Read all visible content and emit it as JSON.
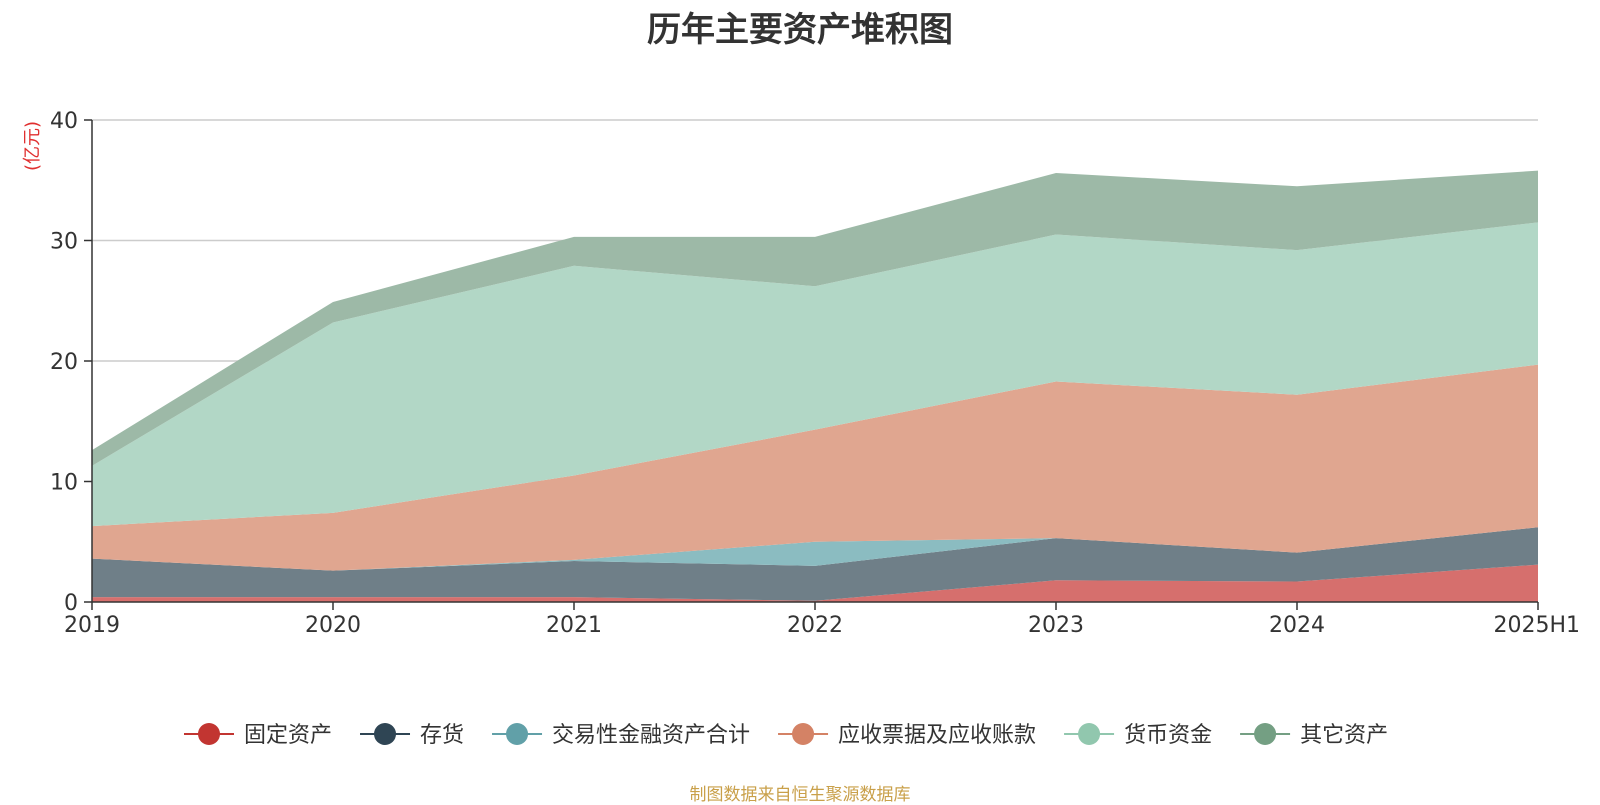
{
  "chart_data": {
    "type": "area",
    "stacked": true,
    "title": "历年主要资产堆积图",
    "ylabel": "(亿元)",
    "xlabel": "",
    "categories": [
      "2019",
      "2020",
      "2021",
      "2022",
      "2023",
      "2024",
      "2025H1"
    ],
    "ylim": [
      0,
      40
    ],
    "yticks": [
      0,
      10,
      20,
      30,
      40
    ],
    "grid": true,
    "legend_position": "bottom",
    "series": [
      {
        "name": "固定资产",
        "color": "#c23531",
        "fill": "#d66f6d",
        "values": [
          0.4,
          0.4,
          0.4,
          0.1,
          1.8,
          1.7,
          3.1
        ]
      },
      {
        "name": "存货",
        "color": "#2f4554",
        "fill": "#6f7f88",
        "values": [
          3.2,
          2.2,
          3.0,
          2.9,
          3.5,
          2.4,
          3.1
        ]
      },
      {
        "name": "交易性金融资产合计",
        "color": "#61a0a8",
        "fill": "#8bbcc1",
        "values": [
          0,
          0,
          0.1,
          2.0,
          0,
          0,
          0
        ]
      },
      {
        "name": "应收票据及应收账款",
        "color": "#d48265",
        "fill": "#e0a690",
        "values": [
          2.7,
          4.8,
          7.0,
          9.3,
          13.0,
          13.1,
          13.5
        ]
      },
      {
        "name": "货币资金",
        "color": "#91c7ae",
        "fill": "#b2d7c6",
        "values": [
          5.0,
          15.8,
          17.4,
          11.9,
          12.2,
          12.0,
          11.8
        ]
      },
      {
        "name": "其它资产",
        "color": "#749f83",
        "fill": "#9db9a7",
        "values": [
          1.3,
          1.7,
          2.4,
          4.1,
          5.1,
          5.3,
          4.3
        ]
      }
    ]
  },
  "source_note": "制图数据来自恒生聚源数据库"
}
